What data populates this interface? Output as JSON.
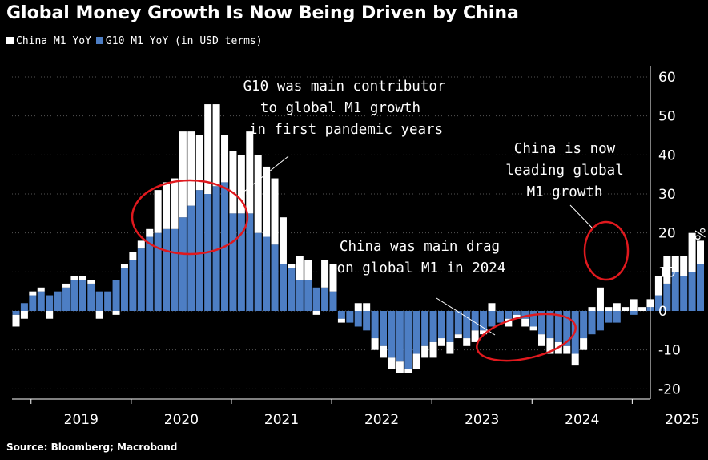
{
  "title": "Global Money Growth Is Now Being Driven by China",
  "legend": [
    {
      "label": "China M1 YoY",
      "color": "#ffffff"
    },
    {
      "label": "G10 M1 YoY (in USD terms)",
      "color": "#4d7ec4"
    }
  ],
  "source": "Source: Bloomberg; Macrobond",
  "y_unit": "%",
  "annotations": {
    "g10": [
      "G10 was main contributor",
      "to global M1 growth",
      "in first pandemic years"
    ],
    "drag": [
      "China was main drag",
      "on global M1 in 2024"
    ],
    "leading": [
      "China is now",
      "leading global",
      "M1 growth"
    ]
  },
  "colors": {
    "china": "#ffffff",
    "g10": "#4d7ec4",
    "circle": "#e0191e",
    "grid": "#555555",
    "background": "#000000"
  },
  "chart_data": {
    "type": "bar",
    "stacked": true,
    "title": "Global Money Growth Is Now Being Driven by China",
    "xlabel": "",
    "ylabel": "%",
    "ylim": [
      -20,
      60
    ],
    "yticks": [
      -20,
      -10,
      0,
      10,
      20,
      30,
      40,
      50,
      60
    ],
    "x_tick_labels": [
      "2019",
      "2020",
      "2021",
      "2022",
      "2023",
      "2024",
      "2025"
    ],
    "x_start": 2018.85,
    "step": 0.0833,
    "series": [
      {
        "name": "G10 M1 YoY (in USD terms)",
        "values": [
          -1,
          2,
          4,
          5,
          4,
          5,
          6,
          8,
          8,
          7,
          5,
          5,
          8,
          11,
          13,
          16,
          19,
          20,
          21,
          21,
          24,
          27,
          31,
          30,
          32,
          33,
          25,
          25,
          25,
          20,
          19,
          17,
          12,
          11,
          8,
          8,
          6,
          6,
          5,
          -2,
          -3,
          -4,
          -5,
          -7,
          -9,
          -12,
          -13,
          -15,
          -11,
          -9,
          -8,
          -7,
          -8,
          -6,
          -7,
          -5,
          -5,
          -4,
          -3,
          -2,
          -1,
          -2,
          -4,
          -6,
          -7,
          -8,
          -9,
          -11,
          -7,
          -6,
          -5,
          -3,
          -3,
          0,
          -1,
          0,
          1,
          4,
          7,
          10,
          9,
          10,
          12
        ]
      },
      {
        "name": "China M1 YoY",
        "values": [
          -3,
          -2,
          1,
          1,
          -2,
          0,
          1,
          1,
          1,
          1,
          -2,
          0,
          -1,
          1,
          2,
          2,
          2,
          11,
          12,
          13,
          22,
          19,
          14,
          23,
          21,
          12,
          16,
          15,
          21,
          20,
          18,
          17,
          12,
          1,
          6,
          5,
          -1,
          7,
          7,
          -1,
          0,
          2,
          2,
          -3,
          -3,
          -3,
          -3,
          -1,
          -4,
          -3,
          -4,
          -2,
          -3,
          -1,
          -2,
          -3,
          -1,
          2,
          0,
          -2,
          -1,
          -2,
          -1,
          -3,
          -4,
          -3,
          -2,
          -3,
          -3,
          1,
          6,
          1,
          2,
          1,
          3,
          1,
          2,
          5,
          7,
          4,
          5,
          10,
          6
        ]
      }
    ]
  }
}
